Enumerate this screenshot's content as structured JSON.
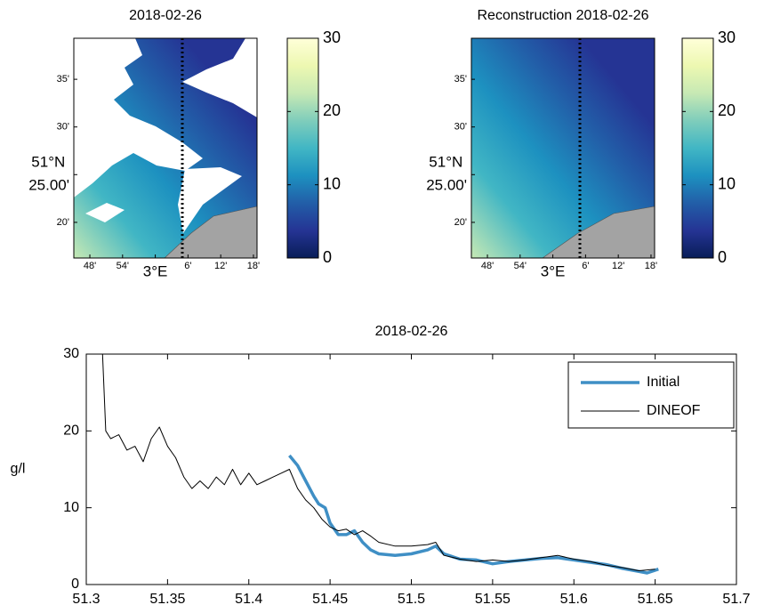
{
  "chart_data": [
    {
      "type": "map",
      "title": "2018-02-26",
      "xlim": [
        2.751,
        3.311
      ],
      "xticks": [
        {
          "value": 2.8,
          "label": "48'"
        },
        {
          "value": 2.9,
          "label": "54'"
        },
        {
          "value": 3.0,
          "label": "3°E"
        },
        {
          "value": 3.1,
          "label": "6'"
        },
        {
          "value": 3.2,
          "label": "12'"
        },
        {
          "value": 3.3,
          "label": "18'"
        }
      ],
      "ylim": [
        51.271,
        51.655
      ],
      "yticks": [
        {
          "value": 51.3333,
          "label": "20'"
        },
        {
          "value": 51.4167,
          "label": "51°N 25.00'"
        },
        {
          "value": 51.5,
          "label": "30'"
        },
        {
          "value": 51.5833,
          "label": "35'"
        }
      ],
      "clim": [
        0,
        30
      ],
      "cticks": [
        0,
        10,
        20,
        30
      ],
      "colormap": [
        "#081d58",
        "#253494",
        "#225ea8",
        "#1d91c0",
        "#41b6c4",
        "#7fcdbb",
        "#c7e9b4",
        "#edf8b1",
        "#ffffd9"
      ]
    },
    {
      "type": "map",
      "title": "Reconstruction 2018-02-26",
      "xlim": [
        2.751,
        3.311
      ],
      "xticks": [
        {
          "value": 2.8,
          "label": "48'"
        },
        {
          "value": 2.9,
          "label": "54'"
        },
        {
          "value": 3.0,
          "label": "3°E"
        },
        {
          "value": 3.1,
          "label": "6'"
        },
        {
          "value": 3.2,
          "label": "12'"
        },
        {
          "value": 3.3,
          "label": "18'"
        }
      ],
      "ylim": [
        51.271,
        51.655
      ],
      "yticks": [
        {
          "value": 51.3333,
          "label": "20'"
        },
        {
          "value": 51.4167,
          "label": "51°N 25.00'"
        },
        {
          "value": 51.5,
          "label": "30'"
        },
        {
          "value": 51.5833,
          "label": "35'"
        }
      ],
      "clim": [
        0,
        30
      ],
      "cticks": [
        0,
        10,
        20,
        30
      ],
      "colormap": [
        "#081d58",
        "#253494",
        "#225ea8",
        "#1d91c0",
        "#41b6c4",
        "#7fcdbb",
        "#c7e9b4",
        "#edf8b1",
        "#ffffd9"
      ]
    },
    {
      "type": "line",
      "title": "2018-02-26",
      "ylabel": "g/l",
      "xlim": [
        51.3,
        51.7
      ],
      "xticks": [
        51.3,
        51.35,
        51.4,
        51.45,
        51.5,
        51.55,
        51.6,
        51.65,
        51.7
      ],
      "ylim": [
        0,
        30
      ],
      "yticks": [
        0,
        10,
        20,
        30
      ],
      "legend": "upper right",
      "series": [
        {
          "name": "Initial",
          "color": "#3f8fc5",
          "x": [
            51.425,
            51.43,
            51.435,
            51.44,
            51.443,
            51.447,
            51.45,
            51.455,
            51.46,
            51.465,
            51.47,
            51.475,
            51.48,
            51.49,
            51.5,
            51.51,
            51.515,
            51.52,
            51.53,
            51.54,
            51.55,
            51.56,
            51.57,
            51.58,
            51.59,
            51.6,
            51.61,
            51.62,
            51.63,
            51.64,
            51.645,
            51.652
          ],
          "values": [
            16.8,
            15.5,
            13.5,
            11.5,
            10.5,
            10,
            8,
            6.5,
            6.5,
            7,
            5.5,
            4.5,
            4,
            3.8,
            4,
            4.5,
            5,
            4,
            3.3,
            3.2,
            2.7,
            3,
            3.2,
            3.4,
            3.5,
            3.2,
            2.9,
            2.6,
            2.1,
            1.7,
            1.5,
            2
          ]
        },
        {
          "name": "DINEOF",
          "color": "#000000",
          "x": [
            51.31,
            51.312,
            51.315,
            51.32,
            51.325,
            51.33,
            51.335,
            51.34,
            51.345,
            51.35,
            51.355,
            51.36,
            51.365,
            51.37,
            51.375,
            51.38,
            51.385,
            51.39,
            51.395,
            51.4,
            51.405,
            51.41,
            51.415,
            51.42,
            51.425,
            51.43,
            51.435,
            51.44,
            51.445,
            51.45,
            51.455,
            51.46,
            51.465,
            51.47,
            51.475,
            51.48,
            51.49,
            51.5,
            51.51,
            51.515,
            51.52,
            51.53,
            51.54,
            51.55,
            51.56,
            51.57,
            51.58,
            51.59,
            51.6,
            51.61,
            51.62,
            51.63,
            51.64,
            51.65
          ],
          "values": [
            30,
            20,
            19,
            19.5,
            17.5,
            18,
            16,
            19,
            20.5,
            18,
            16.5,
            14,
            12.5,
            13.5,
            12.5,
            14,
            13,
            15,
            13,
            14.5,
            13,
            13.5,
            14,
            14.5,
            15,
            12.5,
            11,
            10,
            8.5,
            7.5,
            7,
            7.2,
            6.5,
            7,
            6.3,
            5.5,
            5,
            5,
            5.2,
            5.5,
            3.8,
            3.3,
            3,
            3.2,
            3,
            3.2,
            3.5,
            3.8,
            3.3,
            3,
            2.5,
            2.2,
            1.8,
            2
          ]
        }
      ]
    }
  ]
}
